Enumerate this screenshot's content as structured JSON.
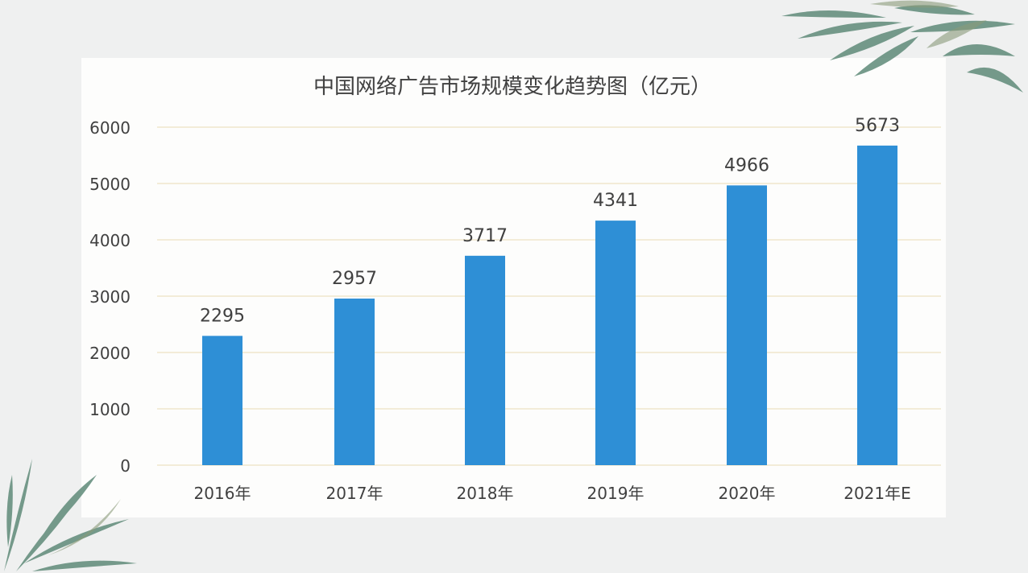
{
  "chart_data": {
    "type": "bar",
    "title": "中国网络广告市场规模变化趋势图（亿元）",
    "categories": [
      "2016年",
      "2017年",
      "2018年",
      "2019年",
      "2020年",
      "2021年E"
    ],
    "values": [
      2295,
      2957,
      3717,
      4341,
      4966,
      5673
    ],
    "data_labels": [
      "2295",
      "2957",
      "3717",
      "4341",
      "4966",
      "5673"
    ],
    "yticks": [
      "0",
      "1000",
      "2000",
      "3000",
      "4000",
      "5000",
      "6000"
    ],
    "ylim": [
      0,
      6000
    ],
    "xlabel": "",
    "ylabel": "",
    "grid": true,
    "legend": "none"
  },
  "colors": {
    "bar": "#2e8fd6",
    "grid": "#f3ecd8",
    "text": "#404040",
    "leaf": "#5c8474"
  },
  "decorations": {
    "top_right": "bamboo-leaves-icon",
    "bottom_left": "bamboo-leaves-icon"
  }
}
